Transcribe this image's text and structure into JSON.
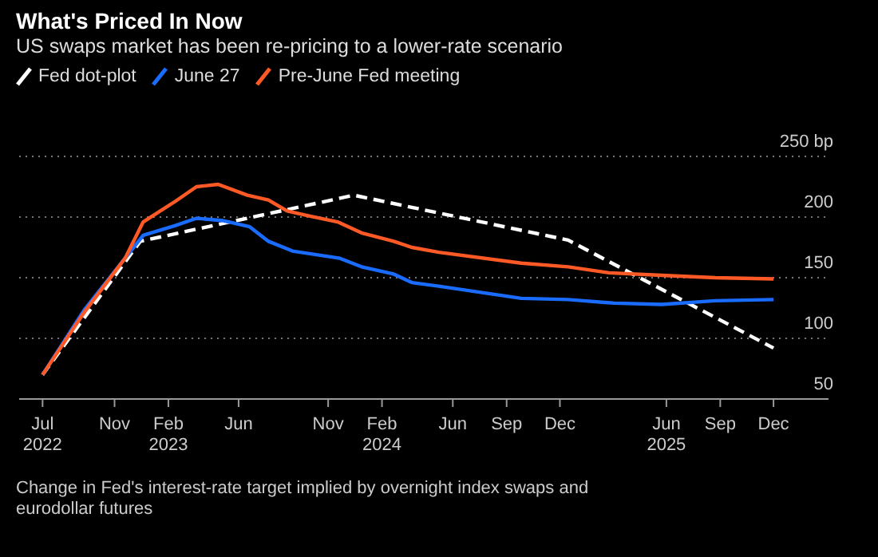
{
  "chart_data": {
    "type": "line",
    "title": "What's Priced In Now",
    "subtitle": "US swaps market has been re-pricing to a lower-rate scenario",
    "annotations": [
      "Change in Fed's interest-rate target implied by overnight index swaps and eurodollar futures"
    ],
    "legend": "top left",
    "grid": "y",
    "xlim": [
      "2022-05-22",
      "2026-03-05"
    ],
    "xticks": [
      {
        "value": "2022-07-01",
        "label": "Jul\n2022"
      },
      {
        "value": "2022-11-01",
        "label": "Nov"
      },
      {
        "value": "2023-02-01",
        "label": "Feb\n2023"
      },
      {
        "value": "2023-06-01",
        "label": "Jun"
      },
      {
        "value": "2023-11-01",
        "label": "Nov"
      },
      {
        "value": "2024-02-01",
        "label": "Feb\n2024"
      },
      {
        "value": "2024-06-01",
        "label": "Jun"
      },
      {
        "value": "2024-09-01",
        "label": "Sep"
      },
      {
        "value": "2024-12-01",
        "label": "Dec"
      },
      {
        "value": "2025-06-01",
        "label": "Jun\n2025"
      },
      {
        "value": "2025-09-01",
        "label": "Sep"
      },
      {
        "value": "2025-12-01",
        "label": "Dec"
      }
    ],
    "ylim": [
      50,
      250
    ],
    "yticks": [
      50,
      100,
      150,
      200,
      {
        "value": 250,
        "label": "250 bp"
      }
    ],
    "series": [
      {
        "name": "Fed dot-plot",
        "color": "#ffffff",
        "line_style": "dashed",
        "x": [
          "2022-07-01",
          "2022-12-15",
          "2023-12-15",
          "2024-12-15",
          "2025-12-01"
        ],
        "values": [
          70,
          180,
          218,
          181,
          92
        ]
      },
      {
        "name": "June 27",
        "color": "#1a6cff",
        "line_style": "solid",
        "x": [
          "2022-07-01",
          "2022-09-11",
          "2022-11-19",
          "2022-12-20",
          "2023-02-13",
          "2023-03-21",
          "2023-05-06",
          "2023-06-20",
          "2023-07-22",
          "2023-09-01",
          "2023-11-21",
          "2023-12-28",
          "2024-02-21",
          "2024-03-23",
          "2024-05-08",
          "2024-09-26",
          "2024-12-15",
          "2025-03-04",
          "2025-05-24",
          "2025-08-23",
          "2025-12-01"
        ],
        "values": [
          70,
          124,
          166,
          185,
          193,
          199,
          197,
          192,
          180,
          172,
          166,
          159,
          153,
          146,
          143,
          133,
          132,
          129,
          128,
          131,
          132
        ]
      },
      {
        "name": "Pre-June Fed meeting",
        "color": "#ff5a26",
        "line_style": "solid",
        "x": [
          "2022-07-01",
          "2022-09-11",
          "2022-11-19",
          "2022-12-20",
          "2023-02-13",
          "2023-03-21",
          "2023-04-27",
          "2023-06-16",
          "2023-07-22",
          "2023-08-23",
          "2023-09-28",
          "2023-11-17",
          "2023-12-28",
          "2024-02-21",
          "2024-03-23",
          "2024-05-08",
          "2024-09-26",
          "2024-12-15",
          "2025-02-23",
          "2025-05-24",
          "2025-08-23",
          "2025-12-01"
        ],
        "values": [
          70,
          122,
          166,
          196,
          213,
          225,
          227,
          218,
          214,
          205,
          201,
          196,
          187,
          180,
          175,
          171,
          162,
          159,
          154,
          152,
          150,
          149
        ]
      }
    ]
  }
}
